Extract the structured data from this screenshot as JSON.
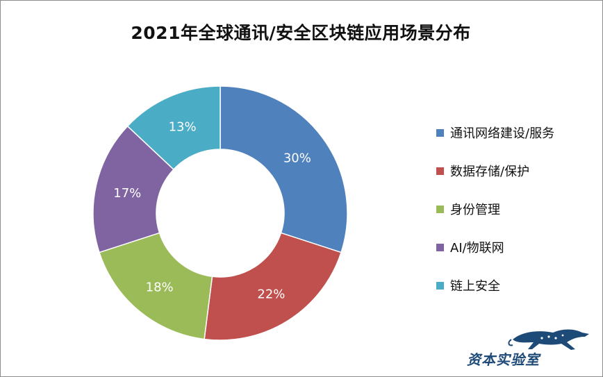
{
  "title": "2021年全球通讯/安全区块链应用场景分布",
  "chart_data": {
    "type": "pie",
    "donut": true,
    "title": "2021年全球通讯/安全区块链应用场景分布",
    "legend_position": "right",
    "categories": [
      "通讯网络建设/服务",
      "数据存储/保护",
      "身份管理",
      "AI/物联网",
      "链上安全"
    ],
    "values": [
      30,
      22,
      18,
      17,
      13
    ],
    "labels": [
      "30%",
      "22%",
      "18%",
      "17%",
      "13%"
    ],
    "colors": [
      "#4f81bd",
      "#c0504d",
      "#9bbb59",
      "#8064a2",
      "#4bacc6"
    ]
  },
  "watermark": {
    "text": "资本实验室",
    "icon": "leopard-icon",
    "color": "#1e4a78"
  }
}
